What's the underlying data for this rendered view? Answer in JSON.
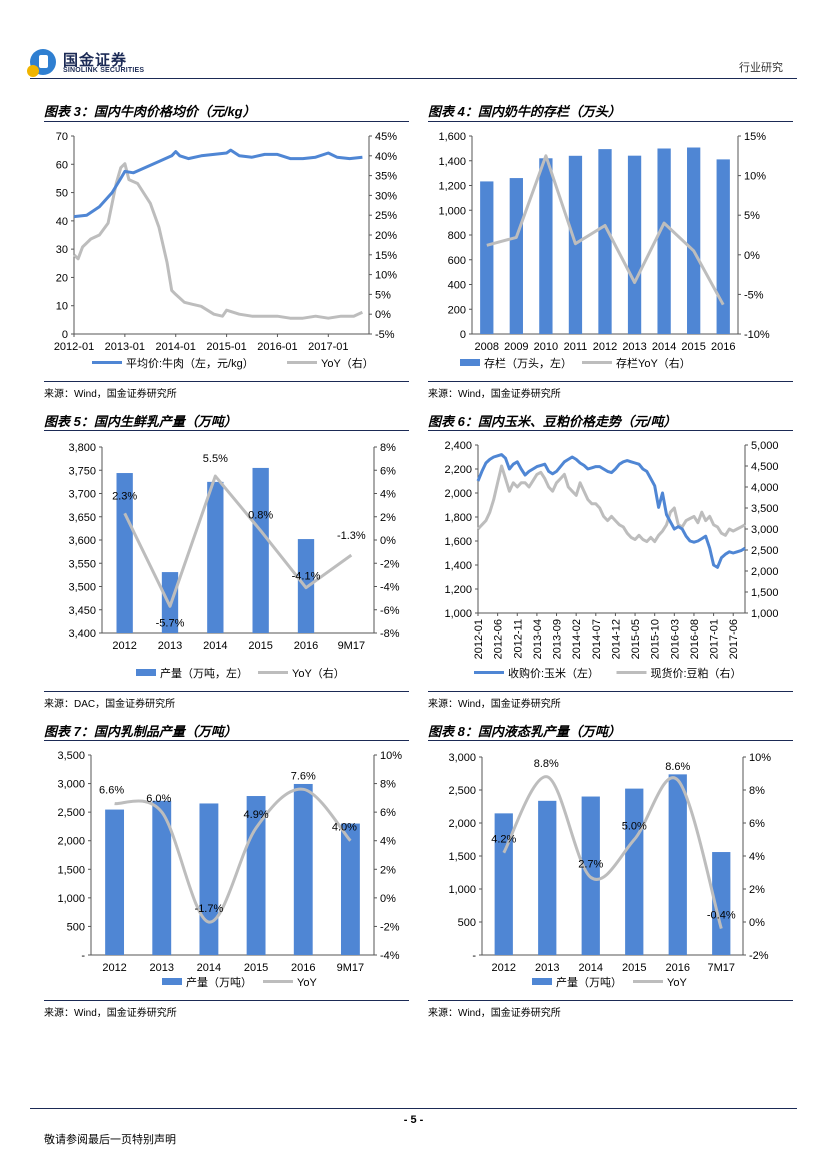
{
  "header": {
    "company_cn": "国金证券",
    "company_en": "SINOLINK SECURITIES",
    "section": "行业研究"
  },
  "footer": {
    "page": "- 5 -",
    "note": "敬请参阅最后一页特别声明"
  },
  "colors": {
    "blue": "#4f86d4",
    "gray": "#bdbdbd",
    "header_rule": "#1b2a55"
  },
  "chart_data": [
    {
      "type": "line",
      "title": "图表 3：国内牛肉价格均价（元/kg）",
      "source": "来源：Wind，国金证券研究所",
      "x_ticks": [
        "2012-01",
        "2013-01",
        "2014-01",
        "2015-01",
        "2016-01",
        "2017-01"
      ],
      "ylim_left": [
        0,
        70
      ],
      "yticks_left": [
        "0",
        "10",
        "20",
        "30",
        "40",
        "50",
        "60",
        "70"
      ],
      "ylim_right": [
        -5,
        45
      ],
      "yticks_right": [
        "-5%",
        "0%",
        "5%",
        "10%",
        "15%",
        "20%",
        "25%",
        "30%",
        "35%",
        "40%",
        "45%"
      ],
      "series": [
        {
          "name": "平均价:牛肉（左，元/kg）",
          "axis": "left",
          "color": "#4f86d4",
          "x": [
            2012.0,
            2012.25,
            2012.5,
            2012.75,
            2012.92,
            2013.0,
            2013.17,
            2013.42,
            2013.67,
            2013.92,
            2014.0,
            2014.08,
            2014.25,
            2014.5,
            2014.75,
            2015.0,
            2015.08,
            2015.25,
            2015.5,
            2015.75,
            2016.0,
            2016.25,
            2016.5,
            2016.75,
            2017.0,
            2017.17,
            2017.42,
            2017.67
          ],
          "values": [
            41.5,
            42,
            45,
            50,
            55,
            57.5,
            57,
            59,
            61,
            63,
            64.5,
            63,
            62,
            63,
            63.5,
            64,
            65,
            63,
            62.5,
            63.5,
            63.5,
            62,
            62,
            62.5,
            64,
            62.5,
            62,
            62.5
          ]
        },
        {
          "name": "YoY（右）",
          "axis": "right",
          "color": "#bdbdbd",
          "x": [
            2012.0,
            2012.08,
            2012.17,
            2012.33,
            2012.5,
            2012.67,
            2012.83,
            2012.92,
            2013.0,
            2013.08,
            2013.25,
            2013.5,
            2013.67,
            2013.83,
            2013.92,
            2014.0,
            2014.17,
            2014.33,
            2014.5,
            2014.75,
            2014.92,
            2015.0,
            2015.25,
            2015.5,
            2015.75,
            2016.0,
            2016.25,
            2016.5,
            2016.75,
            2017.0,
            2017.25,
            2017.5,
            2017.67
          ],
          "values": [
            15,
            14,
            17,
            19,
            20,
            23,
            33,
            37,
            38,
            34,
            33,
            28,
            22,
            13,
            6,
            5,
            3,
            2.5,
            2,
            0,
            -0.5,
            1,
            0,
            -0.5,
            -0.5,
            -0.5,
            -1,
            -1,
            -0.5,
            -1,
            -0.5,
            -0.5,
            0.5
          ]
        }
      ]
    },
    {
      "type": "bar+line",
      "title": "图表 4：国内奶牛的存栏（万头）",
      "source": "来源：Wind，国金证券研究所",
      "categories": [
        "2008",
        "2009",
        "2010",
        "2011",
        "2012",
        "2013",
        "2014",
        "2015",
        "2016"
      ],
      "ylim_left": [
        0,
        1600
      ],
      "yticks_left": [
        "0",
        "200",
        "400",
        "600",
        "800",
        "1,000",
        "1,200",
        "1,400",
        "1,600"
      ],
      "ylim_right": [
        -10,
        15
      ],
      "yticks_right": [
        "-10%",
        "-5%",
        "0%",
        "5%",
        "10%",
        "15%"
      ],
      "series": [
        {
          "name": "存栏（万头，左）",
          "axis": "left",
          "kind": "bar",
          "color": "#4f86d4",
          "values": [
            1233,
            1260,
            1420,
            1440,
            1494,
            1441,
            1499,
            1507,
            1411
          ]
        },
        {
          "name": "存栏YoY（右）",
          "axis": "right",
          "kind": "line",
          "color": "#bdbdbd",
          "values": [
            1.2,
            2.2,
            12.5,
            1.4,
            3.7,
            -3.5,
            4.0,
            0.5,
            -6.3
          ]
        }
      ]
    },
    {
      "type": "bar+line",
      "title": "图表 5：国内生鲜乳产量（万吨）",
      "source": "来源：DAC，国金证券研究所",
      "categories": [
        "2012",
        "2013",
        "2014",
        "2015",
        "2016",
        "9M17"
      ],
      "ylim_left": [
        3400,
        3800
      ],
      "yticks_left": [
        "3,400",
        "3,450",
        "3,500",
        "3,550",
        "3,600",
        "3,650",
        "3,700",
        "3,750",
        "3,800"
      ],
      "ylim_right": [
        -8,
        8
      ],
      "yticks_right": [
        "-8%",
        "-6%",
        "-4%",
        "-2%",
        "0%",
        "2%",
        "4%",
        "6%",
        "8%"
      ],
      "series": [
        {
          "name": "产量（万吨，左）",
          "axis": "left",
          "kind": "bar",
          "color": "#4f86d4",
          "values": [
            3744,
            3531,
            3725,
            3755,
            3602,
            null
          ]
        },
        {
          "name": "YoY（右）",
          "axis": "right",
          "kind": "line",
          "color": "#bdbdbd",
          "values": [
            2.3,
            -5.7,
            5.5,
            0.8,
            -4.1,
            -1.3
          ],
          "labels": [
            "2.3%",
            "-5.7%",
            "5.5%",
            "0.8%",
            "-4.1%",
            "-1.3%"
          ]
        }
      ]
    },
    {
      "type": "line",
      "title": "图表 6：国内玉米、豆粕价格走势（元/吨）",
      "source": "来源：Wind，国金证券研究所",
      "x_ticks": [
        "2012-01",
        "2012-06",
        "2012-11",
        "2013-04",
        "2013-09",
        "2014-02",
        "2014-07",
        "2014-12",
        "2015-05",
        "2015-10",
        "2016-03",
        "2016-08",
        "2017-01",
        "2017-06"
      ],
      "ylim_left": [
        1000,
        2400
      ],
      "yticks_left": [
        "1,000",
        "1,200",
        "1,400",
        "1,600",
        "1,800",
        "2,000",
        "2,200",
        "2,400"
      ],
      "ylim_right": [
        1000,
        5000
      ],
      "yticks_right": [
        "1,000",
        "1,500",
        "2,000",
        "2,500",
        "3,000",
        "3,500",
        "4,000",
        "4,500",
        "5,000"
      ],
      "series": [
        {
          "name": "收购价:玉米（左）",
          "axis": "left",
          "color": "#4f86d4",
          "x": [
            0,
            1,
            2,
            3,
            4,
            5,
            6,
            7,
            8,
            9,
            10,
            11,
            12,
            13,
            14,
            15,
            16,
            17,
            18,
            19,
            20,
            21,
            22,
            23,
            24,
            25,
            26,
            27,
            28,
            29,
            30,
            31,
            32,
            33,
            34,
            35,
            36,
            37,
            38,
            39,
            40,
            41,
            42,
            43,
            44,
            45,
            46,
            47,
            48,
            49,
            50,
            51,
            52,
            53,
            54,
            55,
            56,
            57,
            58,
            59,
            60,
            61,
            62,
            63,
            64,
            65,
            66,
            67,
            68
          ],
          "values": [
            2100,
            2180,
            2250,
            2280,
            2300,
            2310,
            2320,
            2290,
            2200,
            2240,
            2260,
            2200,
            2150,
            2180,
            2200,
            2220,
            2230,
            2240,
            2180,
            2160,
            2180,
            2220,
            2260,
            2280,
            2300,
            2280,
            2250,
            2230,
            2200,
            2210,
            2220,
            2220,
            2200,
            2180,
            2170,
            2200,
            2240,
            2260,
            2270,
            2260,
            2250,
            2240,
            2200,
            2180,
            2120,
            2060,
            1880,
            2000,
            1820,
            1760,
            1700,
            1720,
            1700,
            1640,
            1600,
            1590,
            1600,
            1620,
            1640,
            1540,
            1400,
            1380,
            1460,
            1490,
            1510,
            1500,
            1510,
            1520,
            1540
          ]
        },
        {
          "name": "现货价:豆粕（右）",
          "axis": "right",
          "color": "#bdbdbd",
          "x": [
            0,
            1,
            2,
            3,
            4,
            5,
            6,
            7,
            8,
            9,
            10,
            11,
            12,
            13,
            14,
            15,
            16,
            17,
            18,
            19,
            20,
            21,
            22,
            23,
            24,
            25,
            26,
            27,
            28,
            29,
            30,
            31,
            32,
            33,
            34,
            35,
            36,
            37,
            38,
            39,
            40,
            41,
            42,
            43,
            44,
            45,
            46,
            47,
            48,
            49,
            50,
            51,
            52,
            53,
            54,
            55,
            56,
            57,
            58,
            59,
            60,
            61,
            62,
            63,
            64,
            65,
            66,
            67,
            68
          ],
          "values": [
            3000,
            3100,
            3200,
            3400,
            3700,
            4100,
            4500,
            4200,
            3900,
            4100,
            4000,
            4100,
            4100,
            4000,
            4150,
            4300,
            4350,
            4200,
            4000,
            3900,
            4100,
            4200,
            4300,
            4000,
            3900,
            3800,
            4100,
            3900,
            3700,
            3600,
            3600,
            3500,
            3300,
            3200,
            3300,
            3200,
            3100,
            3050,
            2900,
            2800,
            2750,
            2850,
            2750,
            2700,
            2800,
            2700,
            2850,
            2950,
            3100,
            3400,
            3500,
            3100,
            3050,
            3200,
            3250,
            3300,
            3150,
            3400,
            3200,
            3300,
            3100,
            3050,
            2900,
            2850,
            3000,
            2950,
            3000,
            3050,
            3100
          ]
        }
      ]
    },
    {
      "type": "bar+line",
      "title": "图表 7：国内乳制品产量（万吨）",
      "source": "来源：Wind，国金证券研究所",
      "categories": [
        "2012",
        "2013",
        "2014",
        "2015",
        "2016",
        "9M17"
      ],
      "ylim_left": [
        0,
        3500
      ],
      "yticks_left": [
        "-",
        "500",
        "1,000",
        "1,500",
        "2,000",
        "2,500",
        "3,000",
        "3,500"
      ],
      "ylim_right": [
        -4,
        10
      ],
      "yticks_right": [
        "-4%",
        "-2%",
        "0%",
        "2%",
        "4%",
        "6%",
        "8%",
        "10%"
      ],
      "series": [
        {
          "name": "产量（万吨）",
          "axis": "left",
          "kind": "bar",
          "color": "#4f86d4",
          "values": [
            2545,
            2698,
            2652,
            2782,
            2993,
            2300
          ]
        },
        {
          "name": "YoY",
          "axis": "right",
          "kind": "line",
          "color": "#bdbdbd",
          "values": [
            6.6,
            6.0,
            -1.7,
            4.9,
            7.6,
            4.0
          ],
          "labels": [
            "6.6%",
            "6.0%",
            "-1.7%",
            "4.9%",
            "7.6%",
            "4.0%"
          ]
        }
      ]
    },
    {
      "type": "bar+line",
      "title": "图表 8：国内液态乳产量（万吨）",
      "source": "来源：Wind，国金证券研究所",
      "categories": [
        "2012",
        "2013",
        "2014",
        "2015",
        "2016",
        "7M17"
      ],
      "ylim_left": [
        0,
        3000
      ],
      "yticks_left": [
        "-",
        "500",
        "1,000",
        "1,500",
        "2,000",
        "2,500",
        "3,000"
      ],
      "ylim_right": [
        -2,
        10
      ],
      "yticks_right": [
        "-2%",
        "0%",
        "2%",
        "4%",
        "6%",
        "8%",
        "10%"
      ],
      "series": [
        {
          "name": "产量（万吨）",
          "axis": "left",
          "kind": "bar",
          "color": "#4f86d4",
          "values": [
            2146,
            2336,
            2401,
            2521,
            2737,
            1560
          ]
        },
        {
          "name": "YoY",
          "axis": "right",
          "kind": "line",
          "color": "#bdbdbd",
          "values": [
            4.2,
            8.8,
            2.7,
            5.0,
            8.6,
            -0.4
          ],
          "labels": [
            "4.2%",
            "8.8%",
            "2.7%",
            "5.0%",
            "8.6%",
            "-0.4%"
          ]
        }
      ]
    }
  ]
}
